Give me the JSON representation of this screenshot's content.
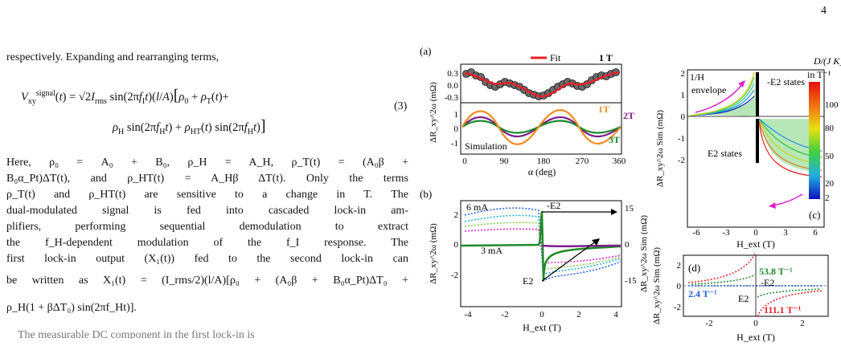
{
  "page_number": "4",
  "body": {
    "intro": "respectively. Expanding and rearranging terms,",
    "eq_number": "(3)",
    "p1_l1": "Here, ρ₀ = A₀ + B₀, ρ_H = A_H, ρ_T(t) = (A₀β +",
    "p1_l2": "B₀α_Pt)ΔT(t), and ρ_HT(t) = A_Hβ ΔT(t). Only the terms",
    "p1_l3": "ρ_T(t) and ρ_HT(t) are sensitive to a change in T. The",
    "p1_l4": "dual-modulated signal is fed into cascaded lock-in am-",
    "p1_l5": "plifiers, performing sequential demodulation to extract",
    "p1_l6": "the f_H-dependent modulation of the f_I response. The",
    "p1_l7": "first lock-in output (X₁(t)) fed to the second lock-in can",
    "p1_l8": "be written as X₁(t) = (I_rms/2)(l/A)[ρ₀ + (A₀β + B₀α_Pt)ΔT₀ +",
    "p1_l9": "ρ_H(1 + βΔT₀) sin(2πf_Ht)].",
    "p2_l1": "The measurable DC component in the first lock-in is"
  },
  "figure": {
    "panel_labels": [
      "(a)",
      "(b)",
      "(c)",
      "(d)"
    ],
    "a": {
      "legend_fit": "Fit",
      "label_1T": "1 T",
      "sim_label": "Simulation",
      "sim_1T": "1T",
      "sim_2T": "2T",
      "sim_3T": "3T",
      "xlabel": "α (deg)",
      "ylabel": "ΔR_xy^2ω (mΩ)",
      "xticks": [
        "0",
        "90",
        "180",
        "270",
        "360"
      ],
      "yticks_top": [
        "0.3",
        "0.0",
        "-0.3"
      ],
      "yticks_bottom": [
        "1",
        "0",
        "-1"
      ]
    },
    "b": {
      "label_6mA": "6 mA",
      "label_3mA": "3 mA",
      "label_E2_top": "-E2",
      "label_E2_bottom": "E2",
      "xlabel": "H_ext (T)",
      "ylabel": "ΔR_xy^2ω (mΩ)",
      "ylabel_right": "ΔR_xy^2ω Sim (mΩ)",
      "xticks": [
        "-4",
        "-2",
        "0",
        "2",
        "4"
      ],
      "yticks_left": [
        "2",
        "0",
        "-2"
      ],
      "yticks_right": [
        "15",
        "0",
        "-15"
      ]
    },
    "c": {
      "label_1H": "1/H",
      "label_env": "envelope",
      "label_E2_states_neg": "-E2 states",
      "label_E2_states": "E2 states",
      "xlabel": "H_ext (T)",
      "ylabel": "ΔR_xy^2ω Sim (mΩ)",
      "xticks": [
        "-6",
        "-3",
        "0",
        "3",
        "6"
      ],
      "yticks": [
        "2",
        "1",
        "0",
        "-1",
        "-2"
      ],
      "colorbar_title_1": "D/(J K_ani)",
      "colorbar_title_2": "in T⁻¹",
      "colorbar_ticks": [
        "100",
        "80",
        "50",
        "20",
        "2"
      ]
    },
    "d": {
      "label_538": "53.8 T⁻¹",
      "label_24": "2.4 T⁻¹",
      "label_1111": "111.1 T⁻¹",
      "label_E2_top": "-E2",
      "label_E2_bottom": "E2",
      "xlabel": "H_ext (T)",
      "ylabel": "ΔR_xy^2ω Sim (mΩ)",
      "xticks": [
        "-2",
        "0",
        "2"
      ],
      "yticks": [
        "2",
        "0",
        "-2"
      ]
    },
    "colors": {
      "red": "#e8202a",
      "orange": "#f28c1e",
      "purple": "#7b1f8a",
      "green": "#1e8a2a",
      "blue": "#1f5fd8",
      "magenta": "#e020c8",
      "cyan": "#18b0c8",
      "lime": "#8bc34a"
    }
  }
}
